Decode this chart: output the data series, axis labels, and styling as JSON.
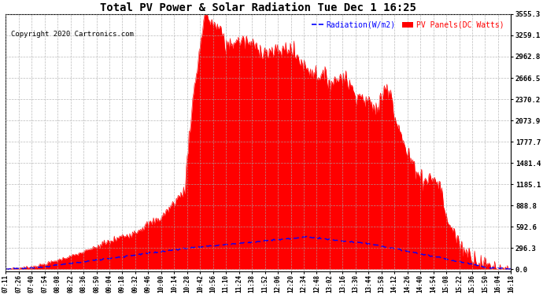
{
  "title": "Total PV Power & Solar Radiation Tue Dec 1 16:25",
  "copyright": "Copyright 2020 Cartronics.com",
  "legend_radiation": "Radiation(W/m2)",
  "legend_pv": "PV Panels(DC Watts)",
  "yticks": [
    0.0,
    296.3,
    592.6,
    888.8,
    1185.1,
    1481.4,
    1777.7,
    2073.9,
    2370.2,
    2666.5,
    2962.8,
    3259.1,
    3555.3
  ],
  "ymax": 3555.3,
  "ymin": 0.0,
  "xtick_labels": [
    "07:11",
    "07:26",
    "07:40",
    "07:54",
    "08:08",
    "08:22",
    "08:36",
    "08:50",
    "09:04",
    "09:18",
    "09:32",
    "09:46",
    "10:00",
    "10:14",
    "10:28",
    "10:42",
    "10:56",
    "11:10",
    "11:24",
    "11:38",
    "11:52",
    "12:06",
    "12:20",
    "12:34",
    "12:48",
    "13:02",
    "13:16",
    "13:30",
    "13:44",
    "13:58",
    "14:12",
    "14:26",
    "14:40",
    "14:54",
    "15:08",
    "15:22",
    "15:36",
    "15:50",
    "16:04",
    "16:18"
  ],
  "bg_color": "#ffffff",
  "grid_color": "#aaaaaa",
  "pv_color": "#ff0000",
  "radiation_color": "#0000ff",
  "title_color": "#000000",
  "copyright_color": "#000000",
  "legend_radiation_color": "#0000ff",
  "legend_pv_color": "#ff0000"
}
